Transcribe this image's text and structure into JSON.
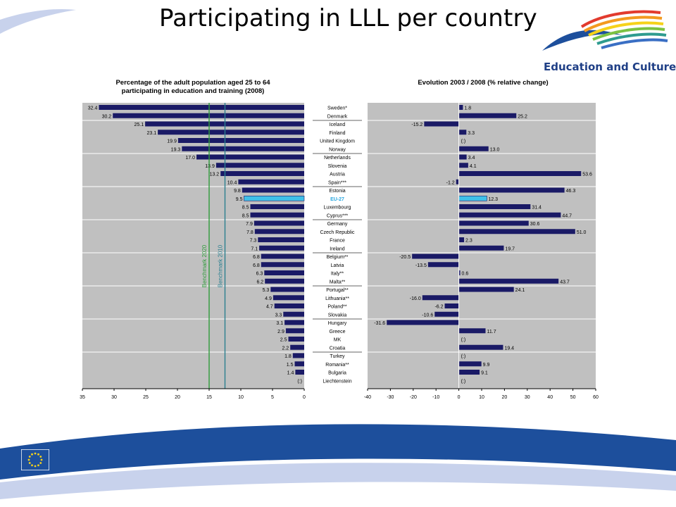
{
  "slide": {
    "title": "Participating  in LLL per country",
    "brand_text": "Education and Culture",
    "colors": {
      "bar": "#1a1a66",
      "eu_bar": "#3fc0e8",
      "eu_label": "#2aa8e0",
      "panel": "#c0c0c0",
      "benchmark_2020": "#2e9b3a",
      "benchmark_2010": "#2a7f8f",
      "swoosh_blue": "#1d4f9c"
    }
  },
  "countries": [
    "Sweden*",
    "Denmark",
    "Iceland",
    "Finland",
    "United Kingdom",
    "Norway",
    "Netherlands",
    "Slovenia",
    "Austria",
    "Spain***",
    "Estonia",
    "EU-27",
    "Luxembourg",
    "Cyprus***",
    "Germany",
    "Czech Republic",
    "France",
    "Ireland",
    "Belgium**",
    "Latvia",
    "Italy**",
    "Malta**",
    "Portugal**",
    "Lithuania**",
    "Poland**",
    "Slovakia",
    "Hungary",
    "Greece",
    "MK",
    "Croatia",
    "Turkey",
    "Romania**",
    "Bulgaria",
    "Liechtenstein"
  ],
  "chart_data": [
    {
      "type": "bar",
      "orientation": "horizontal-reversed",
      "title": "Percentage of the adult population aged 25 to 64\nparticipating in education and training (2008)",
      "categories": [
        "Sweden*",
        "Denmark",
        "Iceland",
        "Finland",
        "United Kingdom",
        "Norway",
        "Netherlands",
        "Slovenia",
        "Austria",
        "Spain***",
        "Estonia",
        "EU-27",
        "Luxembourg",
        "Cyprus***",
        "Germany",
        "Czech Republic",
        "France",
        "Ireland",
        "Belgium**",
        "Latvia",
        "Italy**",
        "Malta**",
        "Portugal**",
        "Lithuania**",
        "Poland**",
        "Slovakia",
        "Hungary",
        "Greece",
        "MK",
        "Croatia",
        "Turkey",
        "Romania**",
        "Bulgaria",
        "Liechtenstein"
      ],
      "values": [
        32.4,
        30.2,
        25.1,
        23.1,
        19.9,
        19.3,
        17.0,
        13.9,
        13.2,
        10.4,
        9.8,
        9.5,
        8.5,
        8.5,
        7.9,
        7.8,
        7.3,
        7.1,
        6.8,
        6.8,
        6.3,
        6.2,
        5.3,
        4.9,
        4.7,
        3.3,
        3.1,
        2.9,
        2.5,
        2.2,
        1.8,
        1.5,
        1.4,
        null
      ],
      "value_labels": [
        "32.4",
        "30.2",
        "25.1",
        "23.1",
        "19.9",
        "19.3",
        "17.0",
        "13.9",
        "13.2",
        "10.4",
        "9.8",
        "9.5",
        "8.5",
        "8.5",
        "7.9",
        "7.8",
        "7.3",
        "7.1",
        "6.8",
        "6.8",
        "6.3",
        "6.2",
        "5.3",
        "4.9",
        "4.7",
        "3.3",
        "3.1",
        "2.9",
        "2.5",
        "2.2",
        "1.8",
        "1.5",
        "1.4",
        "(:)"
      ],
      "xlim": [
        0,
        35
      ],
      "ticks": [
        35,
        30,
        25,
        20,
        15,
        10,
        5,
        0
      ],
      "benchmarks": [
        {
          "name": "Benchmark 2020",
          "value": 15
        },
        {
          "name": "Benchmark 2010",
          "value": 12.5
        }
      ],
      "grid": true
    },
    {
      "type": "bar",
      "orientation": "horizontal",
      "title": "Evolution 2003 / 2008 (% relative change)",
      "categories": [
        "Sweden*",
        "Denmark",
        "Iceland",
        "Finland",
        "United Kingdom",
        "Norway",
        "Netherlands",
        "Slovenia",
        "Austria",
        "Spain***",
        "Estonia",
        "EU-27",
        "Luxembourg",
        "Cyprus***",
        "Germany",
        "Czech Republic",
        "France",
        "Ireland",
        "Belgium**",
        "Latvia",
        "Italy**",
        "Malta**",
        "Portugal**",
        "Lithuania**",
        "Poland**",
        "Slovakia",
        "Hungary",
        "Greece",
        "MK",
        "Croatia",
        "Turkey",
        "Romania**",
        "Bulgaria",
        "Liechtenstein"
      ],
      "values": [
        1.8,
        25.2,
        -15.2,
        3.3,
        null,
        13.0,
        3.4,
        4.1,
        53.6,
        -1.2,
        46.3,
        12.3,
        31.4,
        44.7,
        30.6,
        51.0,
        2.3,
        19.7,
        -20.5,
        -13.5,
        0.6,
        43.7,
        24.1,
        -16.0,
        -6.2,
        -10.6,
        -31.6,
        11.7,
        null,
        19.4,
        null,
        9.9,
        9.1,
        null
      ],
      "value_labels": [
        "1.8",
        "25.2",
        "-15.2",
        "3.3",
        "(:)",
        "13.0",
        "3.4",
        "4.1",
        "53.6",
        "-1.2",
        "46.3",
        "12.3",
        "31.4",
        "44.7",
        "30.6",
        "51.0",
        "2.3",
        "19.7",
        "-20.5",
        "-13.5",
        "0.6",
        "43.7",
        "24.1",
        "-16.0",
        "-6.2",
        "-10.6",
        "-31.6",
        "11.7",
        "(:)",
        "19.4",
        "(:)",
        "9.9",
        "9.1",
        "(:)"
      ],
      "xlim": [
        -40,
        60
      ],
      "ticks": [
        -40,
        -30,
        -20,
        -10,
        0,
        10,
        20,
        30,
        40,
        50,
        60
      ],
      "grid": true
    }
  ]
}
